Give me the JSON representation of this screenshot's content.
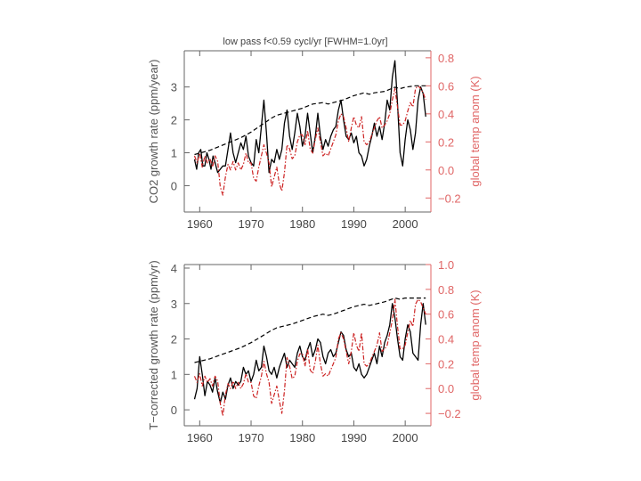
{
  "header": {
    "title": "low pass  f<0.59 cycl/yr   [FWHM=1.0yr]"
  },
  "colors": {
    "axis_left": "#666666",
    "axis_right": "#e06666",
    "dashed_line": "#000000",
    "red_line": "#cc2222",
    "black_line": "#000000"
  },
  "chart_data": [
    {
      "type": "line",
      "title": "low pass  f<0.59 cycl/yr   [FWHM=1.0yr]",
      "xlabel": "",
      "ylabel": "CO2  growth  rate  (ppm/year)",
      "y2label": "global  temp  anom  (K)",
      "xlim": [
        1957,
        2005
      ],
      "ylim": [
        -0.8,
        4.1
      ],
      "y2lim": [
        -0.3,
        0.85
      ],
      "xticks": [
        1960,
        1970,
        1980,
        1990,
        2000
      ],
      "yticks": [
        0,
        1,
        2,
        3
      ],
      "y2ticks": [
        -0.2,
        0.0,
        0.2,
        0.4,
        0.6,
        0.8
      ],
      "y2ticklabels": [
        "−0.2",
        "0.0",
        "0.2",
        "0.4",
        "0.6",
        "0.8"
      ],
      "series": [
        {
          "axis": "y",
          "style": "solid",
          "x": [
            1959,
            1959.4,
            1959.8,
            1960.2,
            1960.6,
            1961,
            1961.4,
            1961.8,
            1962.2,
            1962.6,
            1963,
            1963.5,
            1964,
            1964.5,
            1965,
            1965.5,
            1966,
            1966.5,
            1967,
            1967.5,
            1968,
            1968.5,
            1969,
            1969.5,
            1970,
            1970.5,
            1971,
            1971.5,
            1972,
            1972.5,
            1973,
            1973.5,
            1974,
            1974.5,
            1975,
            1975.5,
            1976,
            1976.5,
            1977,
            1977.5,
            1978,
            1978.5,
            1979,
            1979.5,
            1980,
            1980.5,
            1981,
            1981.5,
            1982,
            1982.5,
            1983,
            1983.5,
            1984,
            1984.5,
            1985,
            1985.5,
            1986,
            1986.5,
            1987,
            1987.5,
            1988,
            1988.5,
            1989,
            1989.5,
            1990,
            1990.5,
            1991,
            1991.5,
            1992,
            1992.5,
            1993,
            1993.5,
            1994,
            1994.5,
            1995,
            1995.5,
            1996,
            1996.5,
            1997,
            1997.5,
            1998,
            1998.5,
            1999,
            1999.5,
            2000,
            2000.5,
            2001,
            2001.5,
            2002,
            2002.5,
            2003,
            2003.5,
            2004
          ],
          "y": [
            0.8,
            0.5,
            1.0,
            1.1,
            0.6,
            0.6,
            1.0,
            0.8,
            0.5,
            0.9,
            0.7,
            0.4,
            0.5,
            0.6,
            0.6,
            1.1,
            1.6,
            1.0,
            0.7,
            1.0,
            1.3,
            1.1,
            1.5,
            0.9,
            0.7,
            0.6,
            1.4,
            1.0,
            1.8,
            2.6,
            1.6,
            0.4,
            0.8,
            0.7,
            1.1,
            0.8,
            1.1,
            1.9,
            2.3,
            1.5,
            1.1,
            1.6,
            2.2,
            1.8,
            1.2,
            1.5,
            2.2,
            1.6,
            1.0,
            1.5,
            2.2,
            1.5,
            1.1,
            1.4,
            1.2,
            1.5,
            1.7,
            1.8,
            2.3,
            2.6,
            2.0,
            1.5,
            1.4,
            1.6,
            1.3,
            1.5,
            1.0,
            0.9,
            0.6,
            0.8,
            1.2,
            1.5,
            1.9,
            1.5,
            1.8,
            1.4,
            1.9,
            2.6,
            2.3,
            3.3,
            3.8,
            2.5,
            1.0,
            0.6,
            1.4,
            2.0,
            1.7,
            1.1,
            1.6,
            2.6,
            3.0,
            2.8,
            2.1
          ]
        },
        {
          "axis": "y2",
          "style": "dash-dot",
          "x": [
            1959,
            1959.5,
            1960,
            1960.5,
            1961,
            1961.5,
            1962,
            1962.5,
            1963,
            1963.5,
            1964,
            1964.5,
            1965,
            1965.5,
            1966,
            1966.5,
            1967,
            1967.5,
            1968,
            1968.5,
            1969,
            1969.5,
            1970,
            1970.5,
            1971,
            1971.5,
            1972,
            1972.5,
            1973,
            1973.5,
            1974,
            1974.5,
            1975,
            1975.5,
            1976,
            1976.5,
            1977,
            1977.5,
            1978,
            1978.5,
            1979,
            1979.5,
            1980,
            1980.5,
            1981,
            1981.5,
            1982,
            1982.5,
            1983,
            1983.5,
            1984,
            1984.5,
            1985,
            1985.5,
            1986,
            1986.5,
            1987,
            1987.5,
            1988,
            1988.5,
            1989,
            1989.5,
            1990,
            1990.5,
            1991,
            1991.5,
            1992,
            1992.5,
            1993,
            1993.5,
            1994,
            1994.5,
            1995,
            1995.5,
            1996,
            1996.5,
            1997,
            1997.5,
            1998,
            1998.5,
            1999,
            1999.5,
            2000,
            2000.5,
            2001,
            2001.5,
            2002,
            2002.5,
            2003,
            2003.5,
            2004
          ],
          "y": [
            0.1,
            0.05,
            0.12,
            0.02,
            0.1,
            0.05,
            0.08,
            0.02,
            0.1,
            0.06,
            -0.12,
            -0.18,
            -0.05,
            0.04,
            0.0,
            0.06,
            0.0,
            0.05,
            0.0,
            0.04,
            0.12,
            0.05,
            0.05,
            -0.06,
            -0.08,
            0.02,
            0.1,
            0.18,
            0.12,
            0.05,
            -0.12,
            -0.05,
            0.02,
            -0.1,
            -0.15,
            -0.02,
            0.18,
            0.15,
            0.08,
            0.1,
            0.2,
            0.25,
            0.25,
            0.18,
            0.28,
            0.15,
            0.12,
            0.22,
            0.3,
            0.2,
            0.1,
            0.12,
            0.1,
            0.15,
            0.2,
            0.25,
            0.35,
            0.4,
            0.38,
            0.3,
            0.2,
            0.3,
            0.38,
            0.32,
            0.3,
            0.38,
            0.2,
            0.18,
            0.2,
            0.25,
            0.3,
            0.35,
            0.38,
            0.3,
            0.32,
            0.35,
            0.4,
            0.5,
            0.58,
            0.45,
            0.32,
            0.32,
            0.35,
            0.42,
            0.48,
            0.45,
            0.58,
            0.6,
            0.58,
            0.55,
            0.5
          ]
        },
        {
          "axis": "y2",
          "style": "dashed",
          "x": [
            1959,
            1960,
            1962,
            1964,
            1966,
            1968,
            1970,
            1972,
            1974,
            1975,
            1976,
            1978,
            1980,
            1982,
            1984,
            1985,
            1986,
            1988,
            1990,
            1992,
            1993,
            1994,
            1996,
            1998,
            1999,
            2000,
            2002,
            2004
          ],
          "y": [
            0.11,
            0.12,
            0.14,
            0.17,
            0.2,
            0.23,
            0.27,
            0.32,
            0.37,
            0.39,
            0.4,
            0.42,
            0.44,
            0.47,
            0.48,
            0.47,
            0.48,
            0.5,
            0.53,
            0.55,
            0.54,
            0.55,
            0.56,
            0.59,
            0.58,
            0.59,
            0.6,
            0.6
          ]
        }
      ]
    },
    {
      "type": "line",
      "title": "",
      "xlabel": "",
      "ylabel": "T−corrected  growth  rate  (ppm/yr)",
      "y2label": "global  temp  anom  (K)",
      "xlim": [
        1957,
        2005
      ],
      "ylim": [
        -0.45,
        4.1
      ],
      "y2lim": [
        -0.3,
        1.0
      ],
      "xticks": [
        1960,
        1970,
        1980,
        1990,
        2000
      ],
      "yticks": [
        0,
        1,
        2,
        3,
        4
      ],
      "y2ticks": [
        -0.2,
        0.0,
        0.2,
        0.4,
        0.6,
        0.8,
        1.0
      ],
      "y2ticklabels": [
        "−0.2",
        "0.0",
        "0.2",
        "0.4",
        "0.6",
        "0.8",
        "1.0"
      ],
      "series": [
        {
          "axis": "y",
          "style": "solid",
          "x": [
            1959,
            1959.5,
            1960,
            1960.5,
            1961,
            1961.5,
            1962,
            1962.5,
            1963,
            1963.5,
            1964,
            1964.5,
            1965,
            1965.5,
            1966,
            1966.5,
            1967,
            1967.5,
            1968,
            1968.5,
            1969,
            1969.5,
            1970,
            1970.5,
            1971,
            1971.5,
            1972,
            1972.5,
            1973,
            1973.5,
            1974,
            1974.5,
            1975,
            1975.5,
            1976,
            1976.5,
            1977,
            1977.5,
            1978,
            1978.5,
            1979,
            1979.5,
            1980,
            1980.5,
            1981,
            1981.5,
            1982,
            1982.5,
            1983,
            1983.5,
            1984,
            1984.5,
            1985,
            1985.5,
            1986,
            1986.5,
            1987,
            1987.5,
            1988,
            1988.5,
            1989,
            1989.5,
            1990,
            1990.5,
            1991,
            1991.5,
            1992,
            1992.5,
            1993,
            1993.5,
            1994,
            1994.5,
            1995,
            1995.5,
            1996,
            1996.5,
            1997,
            1997.5,
            1998,
            1998.5,
            1999,
            1999.5,
            2000,
            2000.5,
            2001,
            2001.5,
            2002,
            2002.5,
            2003,
            2003.5,
            2004
          ],
          "y": [
            0.3,
            0.6,
            1.5,
            1.0,
            0.4,
            0.8,
            0.7,
            0.5,
            0.9,
            0.5,
            0.2,
            0.5,
            0.3,
            0.7,
            0.9,
            0.6,
            0.8,
            0.7,
            0.8,
            1.2,
            1.0,
            1.1,
            0.8,
            1.0,
            1.4,
            1.1,
            1.2,
            1.8,
            1.5,
            1.1,
            1.0,
            1.2,
            0.9,
            1.2,
            1.4,
            1.6,
            1.2,
            1.4,
            1.3,
            1.2,
            1.6,
            1.8,
            1.5,
            1.4,
            1.7,
            1.9,
            1.5,
            1.7,
            2.0,
            1.9,
            1.5,
            1.3,
            1.6,
            1.7,
            1.5,
            1.6,
            1.9,
            2.2,
            2.1,
            1.7,
            1.5,
            1.6,
            1.2,
            1.1,
            1.3,
            1.0,
            0.9,
            1.0,
            1.2,
            1.4,
            1.6,
            1.3,
            1.8,
            1.5,
            1.9,
            2.1,
            2.4,
            3.0,
            2.6,
            2.0,
            1.5,
            1.4,
            2.0,
            2.4,
            2.2,
            1.6,
            1.5,
            1.4,
            2.4,
            3.0,
            2.4
          ]
        },
        {
          "axis": "y2",
          "style": "dash-dot",
          "x": [
            1959,
            1959.5,
            1960,
            1960.5,
            1961,
            1961.5,
            1962,
            1962.5,
            1963,
            1963.5,
            1964,
            1964.5,
            1965,
            1965.5,
            1966,
            1966.5,
            1967,
            1967.5,
            1968,
            1968.5,
            1969,
            1969.5,
            1970,
            1970.5,
            1971,
            1971.5,
            1972,
            1972.5,
            1973,
            1973.5,
            1974,
            1974.5,
            1975,
            1975.5,
            1976,
            1976.5,
            1977,
            1977.5,
            1978,
            1978.5,
            1979,
            1979.5,
            1980,
            1980.5,
            1981,
            1981.5,
            1982,
            1982.5,
            1983,
            1983.5,
            1984,
            1984.5,
            1985,
            1985.5,
            1986,
            1986.5,
            1987,
            1987.5,
            1988,
            1988.5,
            1989,
            1989.5,
            1990,
            1990.5,
            1991,
            1991.5,
            1992,
            1992.5,
            1993,
            1993.5,
            1994,
            1994.5,
            1995,
            1995.5,
            1996,
            1996.5,
            1997,
            1997.5,
            1998,
            1998.5,
            1999,
            1999.5,
            2000,
            2000.5,
            2001,
            2001.5,
            2002,
            2002.5,
            2003,
            2003.5,
            2004
          ],
          "y": [
            0.1,
            0.05,
            0.12,
            0.02,
            0.1,
            0.05,
            0.08,
            0.02,
            0.1,
            0.06,
            -0.12,
            -0.22,
            -0.05,
            0.04,
            0.0,
            0.06,
            0.0,
            0.05,
            0.0,
            0.04,
            0.12,
            0.05,
            0.05,
            -0.06,
            -0.08,
            0.02,
            0.1,
            0.22,
            0.12,
            0.05,
            -0.12,
            -0.05,
            0.02,
            -0.1,
            -0.2,
            -0.02,
            0.25,
            0.18,
            0.08,
            0.1,
            0.22,
            0.28,
            0.28,
            0.18,
            0.32,
            0.15,
            0.12,
            0.22,
            0.35,
            0.2,
            0.1,
            0.12,
            0.1,
            0.15,
            0.2,
            0.25,
            0.4,
            0.45,
            0.4,
            0.3,
            0.2,
            0.3,
            0.45,
            0.35,
            0.3,
            0.45,
            0.2,
            0.18,
            0.2,
            0.25,
            0.3,
            0.35,
            0.45,
            0.3,
            0.32,
            0.35,
            0.45,
            0.55,
            0.72,
            0.5,
            0.32,
            0.32,
            0.35,
            0.45,
            0.55,
            0.5,
            0.68,
            0.72,
            0.7,
            0.65,
            0.6
          ]
        },
        {
          "axis": "y2",
          "style": "dashed",
          "x": [
            1959,
            1960,
            1962,
            1964,
            1966,
            1968,
            1970,
            1972,
            1974,
            1975,
            1976,
            1978,
            1980,
            1982,
            1984,
            1985,
            1986,
            1988,
            1990,
            1992,
            1993,
            1994,
            1996,
            1998,
            1999,
            2000,
            2002,
            2004
          ],
          "y": [
            0.21,
            0.22,
            0.24,
            0.27,
            0.3,
            0.33,
            0.37,
            0.42,
            0.47,
            0.49,
            0.5,
            0.52,
            0.55,
            0.58,
            0.6,
            0.59,
            0.6,
            0.63,
            0.66,
            0.68,
            0.67,
            0.68,
            0.7,
            0.73,
            0.72,
            0.73,
            0.73,
            0.73
          ]
        }
      ]
    }
  ]
}
